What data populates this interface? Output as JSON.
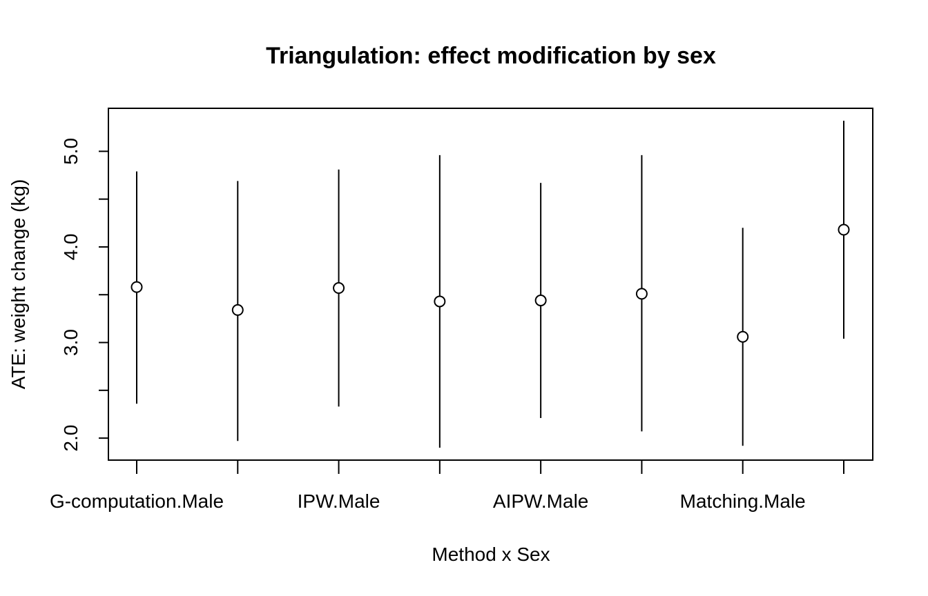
{
  "chart_data": {
    "type": "scatter",
    "title": "Triangulation: effect modification by sex",
    "xlabel": "Method x Sex",
    "ylabel": "ATE: weight change (kg)",
    "categories": [
      "G-computation.Male",
      "",
      "IPW.Male",
      "",
      "AIPW.Male",
      "",
      "Matching.Male",
      ""
    ],
    "estimate": [
      3.58,
      3.34,
      3.57,
      3.43,
      3.44,
      3.51,
      3.06,
      4.18
    ],
    "lower": [
      2.36,
      1.97,
      2.33,
      1.9,
      2.21,
      2.07,
      1.92,
      3.04
    ],
    "upper": [
      4.79,
      4.69,
      4.81,
      4.96,
      4.67,
      4.96,
      4.2,
      5.32
    ],
    "yticks": [
      "2.0",
      "3.0",
      "4.0",
      "5.0"
    ],
    "ylim": [
      1.77,
      5.45
    ],
    "grid": false,
    "legend": "none"
  }
}
